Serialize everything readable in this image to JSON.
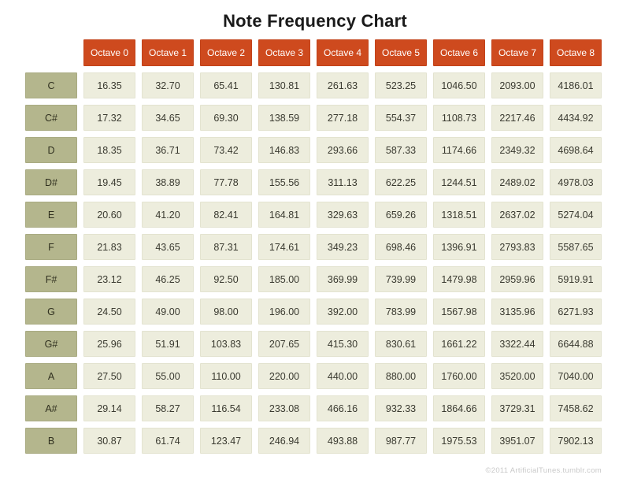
{
  "title": "Note Frequency Chart",
  "footer": {
    "credit": "©2011 ArtificialTunes.tumblr.com"
  },
  "colors": {
    "column_header_bg": "#ce4a1e",
    "column_header_text": "#ffffff",
    "row_label_bg": "#b4b68d",
    "data_cell_bg": "#ededdd",
    "page_bg": "#ffffff",
    "title_text": "#1a1a1a"
  },
  "chart_data": {
    "type": "table",
    "title": "Note Frequency Chart",
    "columns": [
      "Octave 0",
      "Octave 1",
      "Octave 2",
      "Octave 3",
      "Octave 4",
      "Octave 5",
      "Octave 6",
      "Octave 7",
      "Octave 8"
    ],
    "row_labels": [
      "C",
      "C#",
      "D",
      "D#",
      "E",
      "F",
      "F#",
      "G",
      "G#",
      "A",
      "A#",
      "B"
    ],
    "rows": [
      [
        "16.35",
        "32.70",
        "65.41",
        "130.81",
        "261.63",
        "523.25",
        "1046.50",
        "2093.00",
        "4186.01"
      ],
      [
        "17.32",
        "34.65",
        "69.30",
        "138.59",
        "277.18",
        "554.37",
        "1108.73",
        "2217.46",
        "4434.92"
      ],
      [
        "18.35",
        "36.71",
        "73.42",
        "146.83",
        "293.66",
        "587.33",
        "1174.66",
        "2349.32",
        "4698.64"
      ],
      [
        "19.45",
        "38.89",
        "77.78",
        "155.56",
        "311.13",
        "622.25",
        "1244.51",
        "2489.02",
        "4978.03"
      ],
      [
        "20.60",
        "41.20",
        "82.41",
        "164.81",
        "329.63",
        "659.26",
        "1318.51",
        "2637.02",
        "5274.04"
      ],
      [
        "21.83",
        "43.65",
        "87.31",
        "174.61",
        "349.23",
        "698.46",
        "1396.91",
        "2793.83",
        "5587.65"
      ],
      [
        "23.12",
        "46.25",
        "92.50",
        "185.00",
        "369.99",
        "739.99",
        "1479.98",
        "2959.96",
        "5919.91"
      ],
      [
        "24.50",
        "49.00",
        "98.00",
        "196.00",
        "392.00",
        "783.99",
        "1567.98",
        "3135.96",
        "6271.93"
      ],
      [
        "25.96",
        "51.91",
        "103.83",
        "207.65",
        "415.30",
        "830.61",
        "1661.22",
        "3322.44",
        "6644.88"
      ],
      [
        "27.50",
        "55.00",
        "110.00",
        "220.00",
        "440.00",
        "880.00",
        "1760.00",
        "3520.00",
        "7040.00"
      ],
      [
        "29.14",
        "58.27",
        "116.54",
        "233.08",
        "466.16",
        "932.33",
        "1864.66",
        "3729.31",
        "7458.62"
      ],
      [
        "30.87",
        "61.74",
        "123.47",
        "246.94",
        "493.88",
        "987.77",
        "1975.53",
        "3951.07",
        "7902.13"
      ]
    ]
  }
}
